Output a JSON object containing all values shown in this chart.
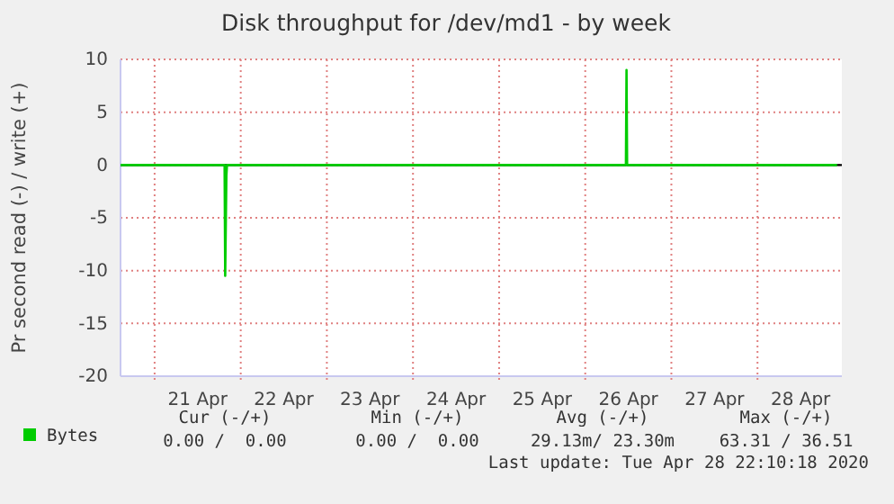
{
  "chart_data": {
    "type": "line",
    "title": "Disk throughput for /dev/md1 - by week",
    "ylabel": "Pr second read (-) / write (+)",
    "x": [
      "2020-04-20T14:30",
      "2020-04-21T19:30",
      "2020-04-21T19:40",
      "2020-04-21T20:00",
      "2020-04-21T20:10",
      "2020-04-26T11:20",
      "2020-04-26T11:30",
      "2020-04-26T11:40",
      "2020-04-28T22:10"
    ],
    "series": [
      {
        "name": "Bytes",
        "color": "#00cc00",
        "values": [
          0,
          0,
          -10.5,
          -1,
          0,
          0,
          9,
          0,
          0
        ]
      }
    ],
    "xlim": [
      "2020-04-20T14:30",
      "2020-04-28T23:30"
    ],
    "xticks": [
      {
        "value": "2020-04-21",
        "label": null
      },
      {
        "value": "2020-04-21T12:00",
        "label": "21 Apr"
      },
      {
        "value": "2020-04-22",
        "label": null
      },
      {
        "value": "2020-04-22T12:00",
        "label": "22 Apr"
      },
      {
        "value": "2020-04-23",
        "label": null
      },
      {
        "value": "2020-04-23T12:00",
        "label": "23 Apr"
      },
      {
        "value": "2020-04-24",
        "label": null
      },
      {
        "value": "2020-04-24T12:00",
        "label": "24 Apr"
      },
      {
        "value": "2020-04-25",
        "label": null
      },
      {
        "value": "2020-04-25T12:00",
        "label": "25 Apr"
      },
      {
        "value": "2020-04-26",
        "label": null
      },
      {
        "value": "2020-04-26T12:00",
        "label": "26 Apr"
      },
      {
        "value": "2020-04-27",
        "label": null
      },
      {
        "value": "2020-04-27T12:00",
        "label": "27 Apr"
      },
      {
        "value": "2020-04-28",
        "label": null
      },
      {
        "value": "2020-04-28T12:00",
        "label": "28 Apr"
      }
    ],
    "ylim": [
      -20,
      10
    ],
    "yticks": [
      -20,
      -15,
      -10,
      -5,
      0,
      5,
      10
    ],
    "ref_lines": [
      {
        "axis": "y",
        "value": 0,
        "color": "#000000"
      }
    ],
    "grid": true,
    "legend": "bottom left",
    "line_style": "solid",
    "marker": "none",
    "annotations": [
      "Cur (-/+)",
      "Min (-/+)",
      "Avg (-/+)",
      "Max (-/+)",
      "0.00 /  0.00",
      "0.00 /  0.00",
      "29.13m/ 23.30m",
      "63.31 / 36.51",
      "Last update: Tue Apr 28 22:10:18 2020"
    ]
  }
}
